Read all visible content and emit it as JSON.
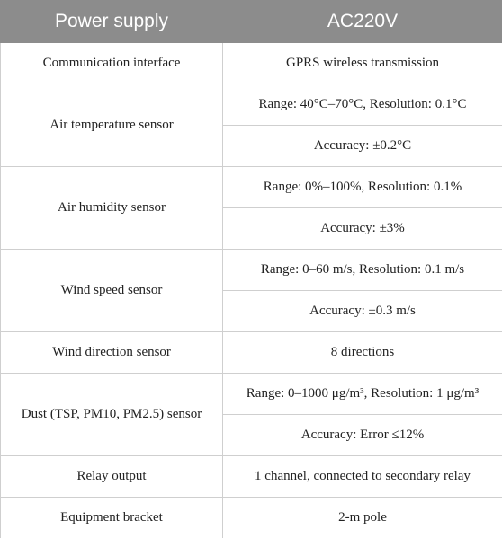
{
  "table": {
    "header": [
      "Power supply",
      "AC220V"
    ],
    "rows": [
      {
        "label": "Communication interface",
        "values": [
          "GPRS wireless transmission"
        ]
      },
      {
        "label": "Air temperature sensor",
        "values": [
          "Range: 40°C–70°C, Resolution: 0.1°C",
          "Accuracy: ±0.2°C"
        ]
      },
      {
        "label": "Air humidity sensor",
        "values": [
          "Range: 0%–100%, Resolution: 0.1%",
          "Accuracy: ±3%"
        ]
      },
      {
        "label": "Wind speed sensor",
        "values": [
          "Range: 0–60 m/s, Resolution: 0.1 m/s",
          "Accuracy: ±0.3 m/s"
        ]
      },
      {
        "label": "Wind direction sensor",
        "values": [
          "8 directions"
        ]
      },
      {
        "label": "Dust (TSP, PM10, PM2.5) sensor",
        "values": [
          "Range: 0–1000 μg/m³, Resolution: 1 μg/m³",
          "Accuracy: Error ≤12%"
        ]
      },
      {
        "label": "Relay output",
        "values": [
          "1 channel, connected to secondary relay"
        ]
      },
      {
        "label": "Equipment bracket",
        "values": [
          "2-m pole"
        ]
      }
    ]
  }
}
